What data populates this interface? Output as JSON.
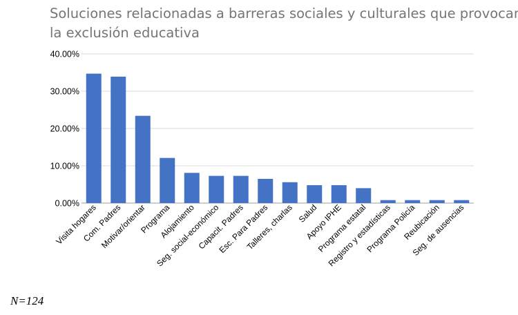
{
  "chart_data": {
    "type": "bar",
    "title_lines": [
      "Soluciones relacionadas a barreras sociales y culturales que provocan",
      "la exclusión educativa"
    ],
    "categories": [
      "Visita hogares",
      "Com. Padres",
      "Motivar/orientar",
      "Programa",
      "Alojamiento",
      "Seg. social-económico",
      "Capacit. Padres",
      "Esc. Para Padres",
      "Talleres, charlas",
      "Salud",
      "Apoyo IPHE",
      "Programa estatal",
      "Registro y estadísticas",
      "Programa Policía",
      "Reubicación",
      "Seg. de ausencias"
    ],
    "values": [
      34.7,
      33.9,
      23.4,
      12.1,
      8.1,
      7.3,
      7.3,
      6.5,
      5.6,
      4.8,
      4.8,
      4.0,
      0.8,
      0.8,
      0.8,
      0.8
    ],
    "ylim": [
      0,
      40
    ],
    "yticks": [
      "0.00%",
      "10.00%",
      "20.00%",
      "30.00%",
      "40.00%"
    ],
    "ytick_values": [
      0,
      10,
      20,
      30,
      40
    ],
    "bar_color": "#4472C4",
    "grid": true,
    "note": "N=124"
  }
}
